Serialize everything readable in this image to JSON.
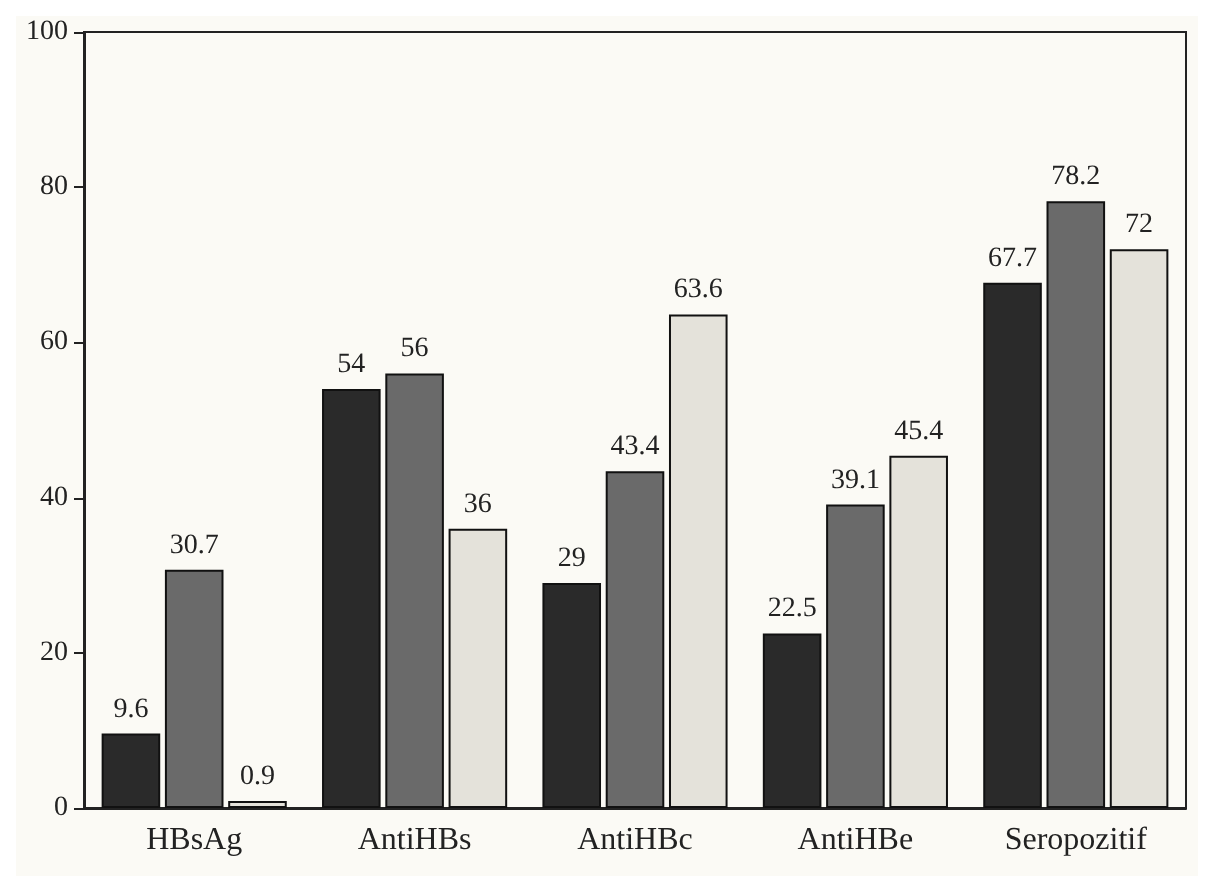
{
  "chart_data": {
    "type": "bar",
    "categories": [
      "HBsAg",
      "AntiHBs",
      "AntiHBc",
      "AntiHBe",
      "Seropozitif"
    ],
    "series": [
      {
        "color": "#2a2a2a",
        "values": [
          9.6,
          54,
          29,
          22.5,
          67.7
        ]
      },
      {
        "color": "#6a6a6a",
        "values": [
          30.7,
          56,
          43.4,
          39.1,
          78.2
        ]
      },
      {
        "color": "#e4e2da",
        "values": [
          0.9,
          36,
          63.6,
          45.4,
          72
        ]
      }
    ],
    "ylim": [
      0,
      100
    ],
    "yticks": [
      0,
      20,
      40,
      60,
      80,
      100
    ],
    "grid": false,
    "data_labels": true
  }
}
